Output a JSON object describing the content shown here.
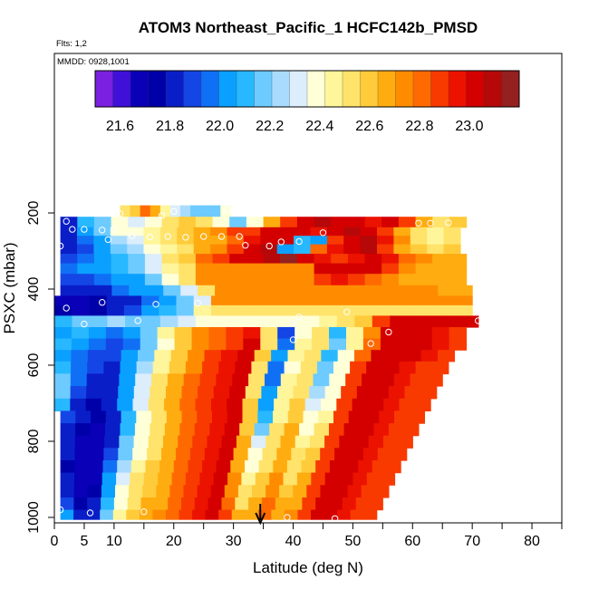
{
  "chart_data": {
    "type": "heatmap",
    "title": "ATOM3 Northeast_Pacific_1 HCFC142b_PMSD",
    "flights_label": "Flts: 1,2",
    "date_label": "MMDD: 0928,1001",
    "xlabel": "Latitude (deg N)",
    "ylabel": "PSXC (mbar)",
    "xlim": [
      0,
      85
    ],
    "ylim": [
      1000,
      0
    ],
    "x_ticks": [
      0,
      5,
      10,
      20,
      30,
      40,
      50,
      60,
      70,
      80
    ],
    "x_minor_ticks": [
      15,
      25,
      35,
      45,
      55,
      65,
      75,
      85
    ],
    "y_ticks": [
      200,
      400,
      600,
      800,
      1000
    ],
    "colorbar": {
      "min": 21.5,
      "max": 23.2,
      "ticks": [
        21.6,
        21.8,
        22.0,
        22.2,
        22.4,
        22.6,
        22.8,
        23.0
      ],
      "colors": [
        "#7b1fe0",
        "#3f10d8",
        "#0a00b8",
        "#0000a8",
        "#0a1ec8",
        "#1446e6",
        "#1070f5",
        "#0aa0ff",
        "#28b8ff",
        "#6ecbff",
        "#a8dcff",
        "#dcedfb",
        "#ffffd8",
        "#fff59a",
        "#ffe36a",
        "#ffcb3a",
        "#ffac10",
        "#ff8c00",
        "#ff6a00",
        "#f83a00",
        "#ec1200",
        "#d40000",
        "#b60808",
        "#952020"
      ]
    },
    "rows": [
      {
        "p": 195,
        "lat_min": 11,
        "lat_max": 29.5,
        "values": [
          22.5,
          22.6,
          22.8,
          22.65,
          22.45,
          22.3,
          22.25,
          22.2,
          22.15,
          22.2,
          22.4
        ]
      },
      {
        "p": 225,
        "lat_min": 1,
        "lat_max": 69,
        "values": [
          21.8,
          22.1,
          22.2,
          22.4,
          22.3,
          22.35,
          22.5,
          22.6,
          22.55,
          22.35,
          22.2,
          22.4,
          22.7,
          22.9,
          23.05,
          23.1,
          23.05,
          23.0,
          22.95,
          23.05,
          22.9,
          22.7,
          22.5,
          22.6
        ]
      },
      {
        "p": 250,
        "lat_min": 1,
        "lat_max": 68,
        "values": [
          21.85,
          22.0,
          22.2,
          22.35,
          22.4,
          22.45,
          22.5,
          22.6,
          22.7,
          22.75,
          22.85,
          22.9,
          23.0,
          23.05,
          23.0,
          22.95,
          23.0,
          23.1,
          23.05,
          22.9,
          22.7,
          22.55,
          22.45,
          22.55
        ]
      },
      {
        "p": 270,
        "lat_min": 1,
        "lat_max": 68,
        "values": [
          21.8,
          21.95,
          22.05,
          22.25,
          22.3,
          22.45,
          22.55,
          22.6,
          22.65,
          22.7,
          22.8,
          22.95,
          23.0,
          23.05,
          22.1,
          22.0,
          22.9,
          23.0,
          23.1,
          22.95,
          22.75,
          22.55,
          22.45,
          22.55
        ]
      },
      {
        "p": 295,
        "lat_min": 1,
        "lat_max": 68,
        "values": [
          21.85,
          21.9,
          22.0,
          22.2,
          22.25,
          22.35,
          22.45,
          22.55,
          22.65,
          22.75,
          22.9,
          23.05,
          23.1,
          22.05,
          22.1,
          22.8,
          22.95,
          23.05,
          23.1,
          22.9,
          22.65,
          22.6,
          22.55,
          22.6
        ]
      },
      {
        "p": 320,
        "lat_min": 1,
        "lat_max": 69,
        "values": [
          21.9,
          21.95,
          22.0,
          22.1,
          22.2,
          22.3,
          22.5,
          22.6,
          22.8,
          22.9,
          23.0,
          23.05,
          23.1,
          23.15,
          23.05,
          22.95,
          22.9,
          22.95,
          23.05,
          22.95,
          22.8,
          22.75,
          22.7,
          22.7
        ]
      },
      {
        "p": 345,
        "lat_min": 1,
        "lat_max": 69,
        "values": [
          21.95,
          22.0,
          22.05,
          22.1,
          22.15,
          22.3,
          22.45,
          22.55,
          22.75,
          22.75,
          22.75,
          22.75,
          22.75,
          22.75,
          22.75,
          23.05,
          23.05,
          23.05,
          23.05,
          22.85,
          22.75,
          22.7,
          22.7,
          22.7
        ]
      },
      {
        "p": 375,
        "lat_min": 1,
        "lat_max": 69,
        "values": [
          21.9,
          21.9,
          21.95,
          22.0,
          22.05,
          22.15,
          22.35,
          22.55,
          22.75,
          22.75,
          22.75,
          22.75,
          22.75,
          22.75,
          22.75,
          22.85,
          22.95,
          22.85,
          22.8,
          22.75,
          22.7,
          22.7,
          22.7,
          22.7
        ]
      },
      {
        "p": 405,
        "lat_min": 1,
        "lat_max": 70,
        "values": [
          21.8,
          21.8,
          21.85,
          21.95,
          22.0,
          22.05,
          22.15,
          22.3,
          22.5,
          22.75,
          22.75,
          22.75,
          22.75,
          22.75,
          22.75,
          22.75,
          22.75,
          22.75,
          22.75,
          22.75,
          22.75,
          22.75,
          22.7,
          22.7
        ]
      },
      {
        "p": 430,
        "lat_min": 0,
        "lat_max": 70,
        "values": [
          21.7,
          21.7,
          21.75,
          21.8,
          21.85,
          21.95,
          22.05,
          22.15,
          22.3,
          22.75,
          22.75,
          22.75,
          22.75,
          22.75,
          22.75,
          22.75,
          22.75,
          22.75,
          22.75,
          22.75,
          22.75,
          22.75,
          22.75,
          22.75
        ]
      },
      {
        "p": 455,
        "lat_min": 0,
        "lat_max": 70,
        "values": [
          21.75,
          21.7,
          21.75,
          21.8,
          21.9,
          22.0,
          22.1,
          22.2,
          22.45,
          22.55,
          22.55,
          22.55,
          22.55,
          22.55,
          22.55,
          22.55,
          22.55,
          22.55,
          22.55,
          22.55,
          22.55,
          22.55,
          22.55,
          22.55
        ]
      },
      {
        "p": 485,
        "lat_min": 0,
        "lat_max": 71,
        "values": [
          22.1,
          22.15,
          22.2,
          22.25,
          22.2,
          22.2,
          22.25,
          22.3,
          22.35,
          22.35,
          22.35,
          22.35,
          22.35,
          22.35,
          22.4,
          22.45,
          22.55,
          22.6,
          22.9,
          23.0,
          23.05,
          23.05,
          23.0,
          23.0
        ]
      },
      {
        "p": 515,
        "lat_min": 0,
        "lat_max": 69,
        "values": [
          22.05,
          22.1,
          22.0,
          21.95,
          22.0,
          22.2,
          22.45,
          22.6,
          22.75,
          22.8,
          22.9,
          22.95,
          22.5,
          21.9,
          22.4,
          22.55,
          22.1,
          22.45,
          22.75,
          23.0,
          23.05,
          23.0,
          22.95,
          22.85
        ]
      },
      {
        "p": 545,
        "lat_min": 0,
        "lat_max": 69,
        "values": [
          22.1,
          22.0,
          21.95,
          21.9,
          21.95,
          22.15,
          22.4,
          22.6,
          22.75,
          22.8,
          22.9,
          23.0,
          22.55,
          21.95,
          22.45,
          22.55,
          22.15,
          22.45,
          22.8,
          23.05,
          23.05,
          23.0,
          22.95,
          22.85
        ]
      },
      {
        "p": 575,
        "lat_min": 0,
        "lat_max": 67,
        "values": [
          22.0,
          21.95,
          21.9,
          21.9,
          22.0,
          22.2,
          22.45,
          22.6,
          22.75,
          22.85,
          22.95,
          23.0,
          22.6,
          22.0,
          22.45,
          22.5,
          22.1,
          22.4,
          22.8,
          23.05,
          23.05,
          23.0,
          22.95,
          22.9
        ]
      },
      {
        "p": 605,
        "lat_min": 0,
        "lat_max": 66,
        "values": [
          22.1,
          21.95,
          21.9,
          21.85,
          22.05,
          22.25,
          22.45,
          22.6,
          22.75,
          22.85,
          22.95,
          23.0,
          22.55,
          21.95,
          22.4,
          22.5,
          22.15,
          22.4,
          22.85,
          23.05,
          23.0,
          22.95,
          22.9,
          22.9
        ]
      },
      {
        "p": 640,
        "lat_min": 0,
        "lat_max": 65,
        "values": [
          22.15,
          21.95,
          21.85,
          21.8,
          22.0,
          22.3,
          22.5,
          22.65,
          22.8,
          22.9,
          22.95,
          23.0,
          22.5,
          21.95,
          22.45,
          22.5,
          22.2,
          22.35,
          22.85,
          23.05,
          23.0,
          22.95,
          22.9,
          22.9
        ]
      },
      {
        "p": 670,
        "lat_min": 0,
        "lat_max": 64,
        "values": [
          22.15,
          21.9,
          21.8,
          21.8,
          22.05,
          22.3,
          22.5,
          22.65,
          22.8,
          22.9,
          22.95,
          23.0,
          22.55,
          22.0,
          22.45,
          22.55,
          22.25,
          22.35,
          22.85,
          23.05,
          23.0,
          22.95,
          22.9,
          22.85
        ]
      },
      {
        "p": 705,
        "lat_min": 0,
        "lat_max": 63,
        "values": [
          22.1,
          21.85,
          21.75,
          21.8,
          22.05,
          22.3,
          22.5,
          22.7,
          22.8,
          22.9,
          22.95,
          23.0,
          22.6,
          22.05,
          22.45,
          22.6,
          22.3,
          22.4,
          22.85,
          23.05,
          23.0,
          22.95,
          22.9,
          22.85
        ]
      },
      {
        "p": 735,
        "lat_min": 1,
        "lat_max": 62,
        "values": [
          21.9,
          21.8,
          21.75,
          21.85,
          22.1,
          22.35,
          22.55,
          22.7,
          22.8,
          22.9,
          22.95,
          23.0,
          22.6,
          22.1,
          22.45,
          22.6,
          22.35,
          22.45,
          22.85,
          23.05,
          23.0,
          22.95,
          22.9,
          22.85
        ]
      },
      {
        "p": 770,
        "lat_min": 1,
        "lat_max": 61,
        "values": [
          21.85,
          21.75,
          21.7,
          21.85,
          22.1,
          22.35,
          22.55,
          22.7,
          22.8,
          22.9,
          22.95,
          23.0,
          22.6,
          22.2,
          22.5,
          22.65,
          22.4,
          22.5,
          22.85,
          23.05,
          23.0,
          22.95,
          22.9,
          22.85
        ]
      },
      {
        "p": 800,
        "lat_min": 1,
        "lat_max": 60,
        "values": [
          21.85,
          21.7,
          21.7,
          21.85,
          22.15,
          22.4,
          22.55,
          22.7,
          22.8,
          22.9,
          22.95,
          23.0,
          22.65,
          22.3,
          22.5,
          22.65,
          22.45,
          22.55,
          22.85,
          23.05,
          23.0,
          22.95,
          22.9,
          22.85
        ]
      },
      {
        "p": 835,
        "lat_min": 1,
        "lat_max": 59,
        "values": [
          21.8,
          21.7,
          21.7,
          21.9,
          22.2,
          22.4,
          22.55,
          22.7,
          22.8,
          22.9,
          22.95,
          23.0,
          22.7,
          22.35,
          22.55,
          22.7,
          22.5,
          22.6,
          22.85,
          23.05,
          23.0,
          22.95,
          22.9,
          22.85
        ]
      },
      {
        "p": 865,
        "lat_min": 1,
        "lat_max": 58,
        "values": [
          21.75,
          21.65,
          21.7,
          21.95,
          22.25,
          22.45,
          22.6,
          22.7,
          22.8,
          22.85,
          22.95,
          23.0,
          22.7,
          22.4,
          22.55,
          22.7,
          22.55,
          22.6,
          22.85,
          23.05,
          23.0,
          22.95,
          22.9,
          22.85
        ]
      },
      {
        "p": 900,
        "lat_min": 1,
        "lat_max": 57,
        "values": [
          21.8,
          21.65,
          21.7,
          22.0,
          22.3,
          22.5,
          22.6,
          22.7,
          22.8,
          22.85,
          22.95,
          23.0,
          22.75,
          22.45,
          22.6,
          22.75,
          22.55,
          22.65,
          22.85,
          23.05,
          23.0,
          22.95,
          22.9,
          22.85
        ]
      },
      {
        "p": 930,
        "lat_min": 1,
        "lat_max": 56,
        "values": [
          21.85,
          21.7,
          21.75,
          22.05,
          22.35,
          22.5,
          22.6,
          22.7,
          22.8,
          22.85,
          22.95,
          23.0,
          22.75,
          22.5,
          22.6,
          22.75,
          22.6,
          22.65,
          22.85,
          23.05,
          23.0,
          22.95,
          22.9,
          22.85
        ]
      },
      {
        "p": 965,
        "lat_min": 1,
        "lat_max": 55,
        "values": [
          21.9,
          21.75,
          21.8,
          22.1,
          22.4,
          22.55,
          22.65,
          22.7,
          22.8,
          22.85,
          22.95,
          23.0,
          22.8,
          22.55,
          22.65,
          22.8,
          22.65,
          22.7,
          22.85,
          23.05,
          23.0,
          22.95,
          22.9,
          22.85
        ]
      },
      {
        "p": 995,
        "lat_min": 1,
        "lat_max": 54,
        "values": [
          22.0,
          21.8,
          21.85,
          22.15,
          22.45,
          22.6,
          22.7,
          22.75,
          22.8,
          22.85,
          22.95,
          23.0,
          22.85,
          22.65,
          22.7,
          22.8,
          22.7,
          22.75,
          22.85,
          23.05,
          23.0,
          22.95,
          22.9,
          22.85
        ]
      }
    ],
    "points": [
      {
        "lat": 20,
        "p": 196
      },
      {
        "lat": 29,
        "p": 192
      },
      {
        "lat": 11,
        "p": 202
      },
      {
        "lat": 18,
        "p": 207
      },
      {
        "lat": 2,
        "p": 222
      },
      {
        "lat": 61,
        "p": 227
      },
      {
        "lat": 63,
        "p": 227
      },
      {
        "lat": 66,
        "p": 226
      },
      {
        "lat": 3,
        "p": 243
      },
      {
        "lat": 5,
        "p": 243
      },
      {
        "lat": 8,
        "p": 245
      },
      {
        "lat": 10,
        "p": 243
      },
      {
        "lat": 45,
        "p": 252
      },
      {
        "lat": 13,
        "p": 260
      },
      {
        "lat": 16,
        "p": 263
      },
      {
        "lat": 19,
        "p": 262
      },
      {
        "lat": 22,
        "p": 264
      },
      {
        "lat": 25,
        "p": 262
      },
      {
        "lat": 28,
        "p": 262
      },
      {
        "lat": 31,
        "p": 262
      },
      {
        "lat": 9,
        "p": 270
      },
      {
        "lat": 32,
        "p": 285
      },
      {
        "lat": 36,
        "p": 287
      },
      {
        "lat": 38,
        "p": 276
      },
      {
        "lat": 41,
        "p": 275
      },
      {
        "lat": 1,
        "p": 287
      },
      {
        "lat": 2,
        "p": 450
      },
      {
        "lat": 8,
        "p": 435
      },
      {
        "lat": 17,
        "p": 440
      },
      {
        "lat": 24,
        "p": 437
      },
      {
        "lat": 5,
        "p": 492
      },
      {
        "lat": 14,
        "p": 483
      },
      {
        "lat": 40,
        "p": 490
      },
      {
        "lat": 41,
        "p": 473
      },
      {
        "lat": 49,
        "p": 460
      },
      {
        "lat": 56,
        "p": 513
      },
      {
        "lat": 71,
        "p": 483
      },
      {
        "lat": 40,
        "p": 533
      },
      {
        "lat": 53,
        "p": 543
      },
      {
        "lat": 1,
        "p": 980
      },
      {
        "lat": 6,
        "p": 988
      },
      {
        "lat": 15,
        "p": 985
      },
      {
        "lat": 39,
        "p": 1000
      },
      {
        "lat": 47,
        "p": 1003
      }
    ],
    "arrow_lat": 34.5
  }
}
